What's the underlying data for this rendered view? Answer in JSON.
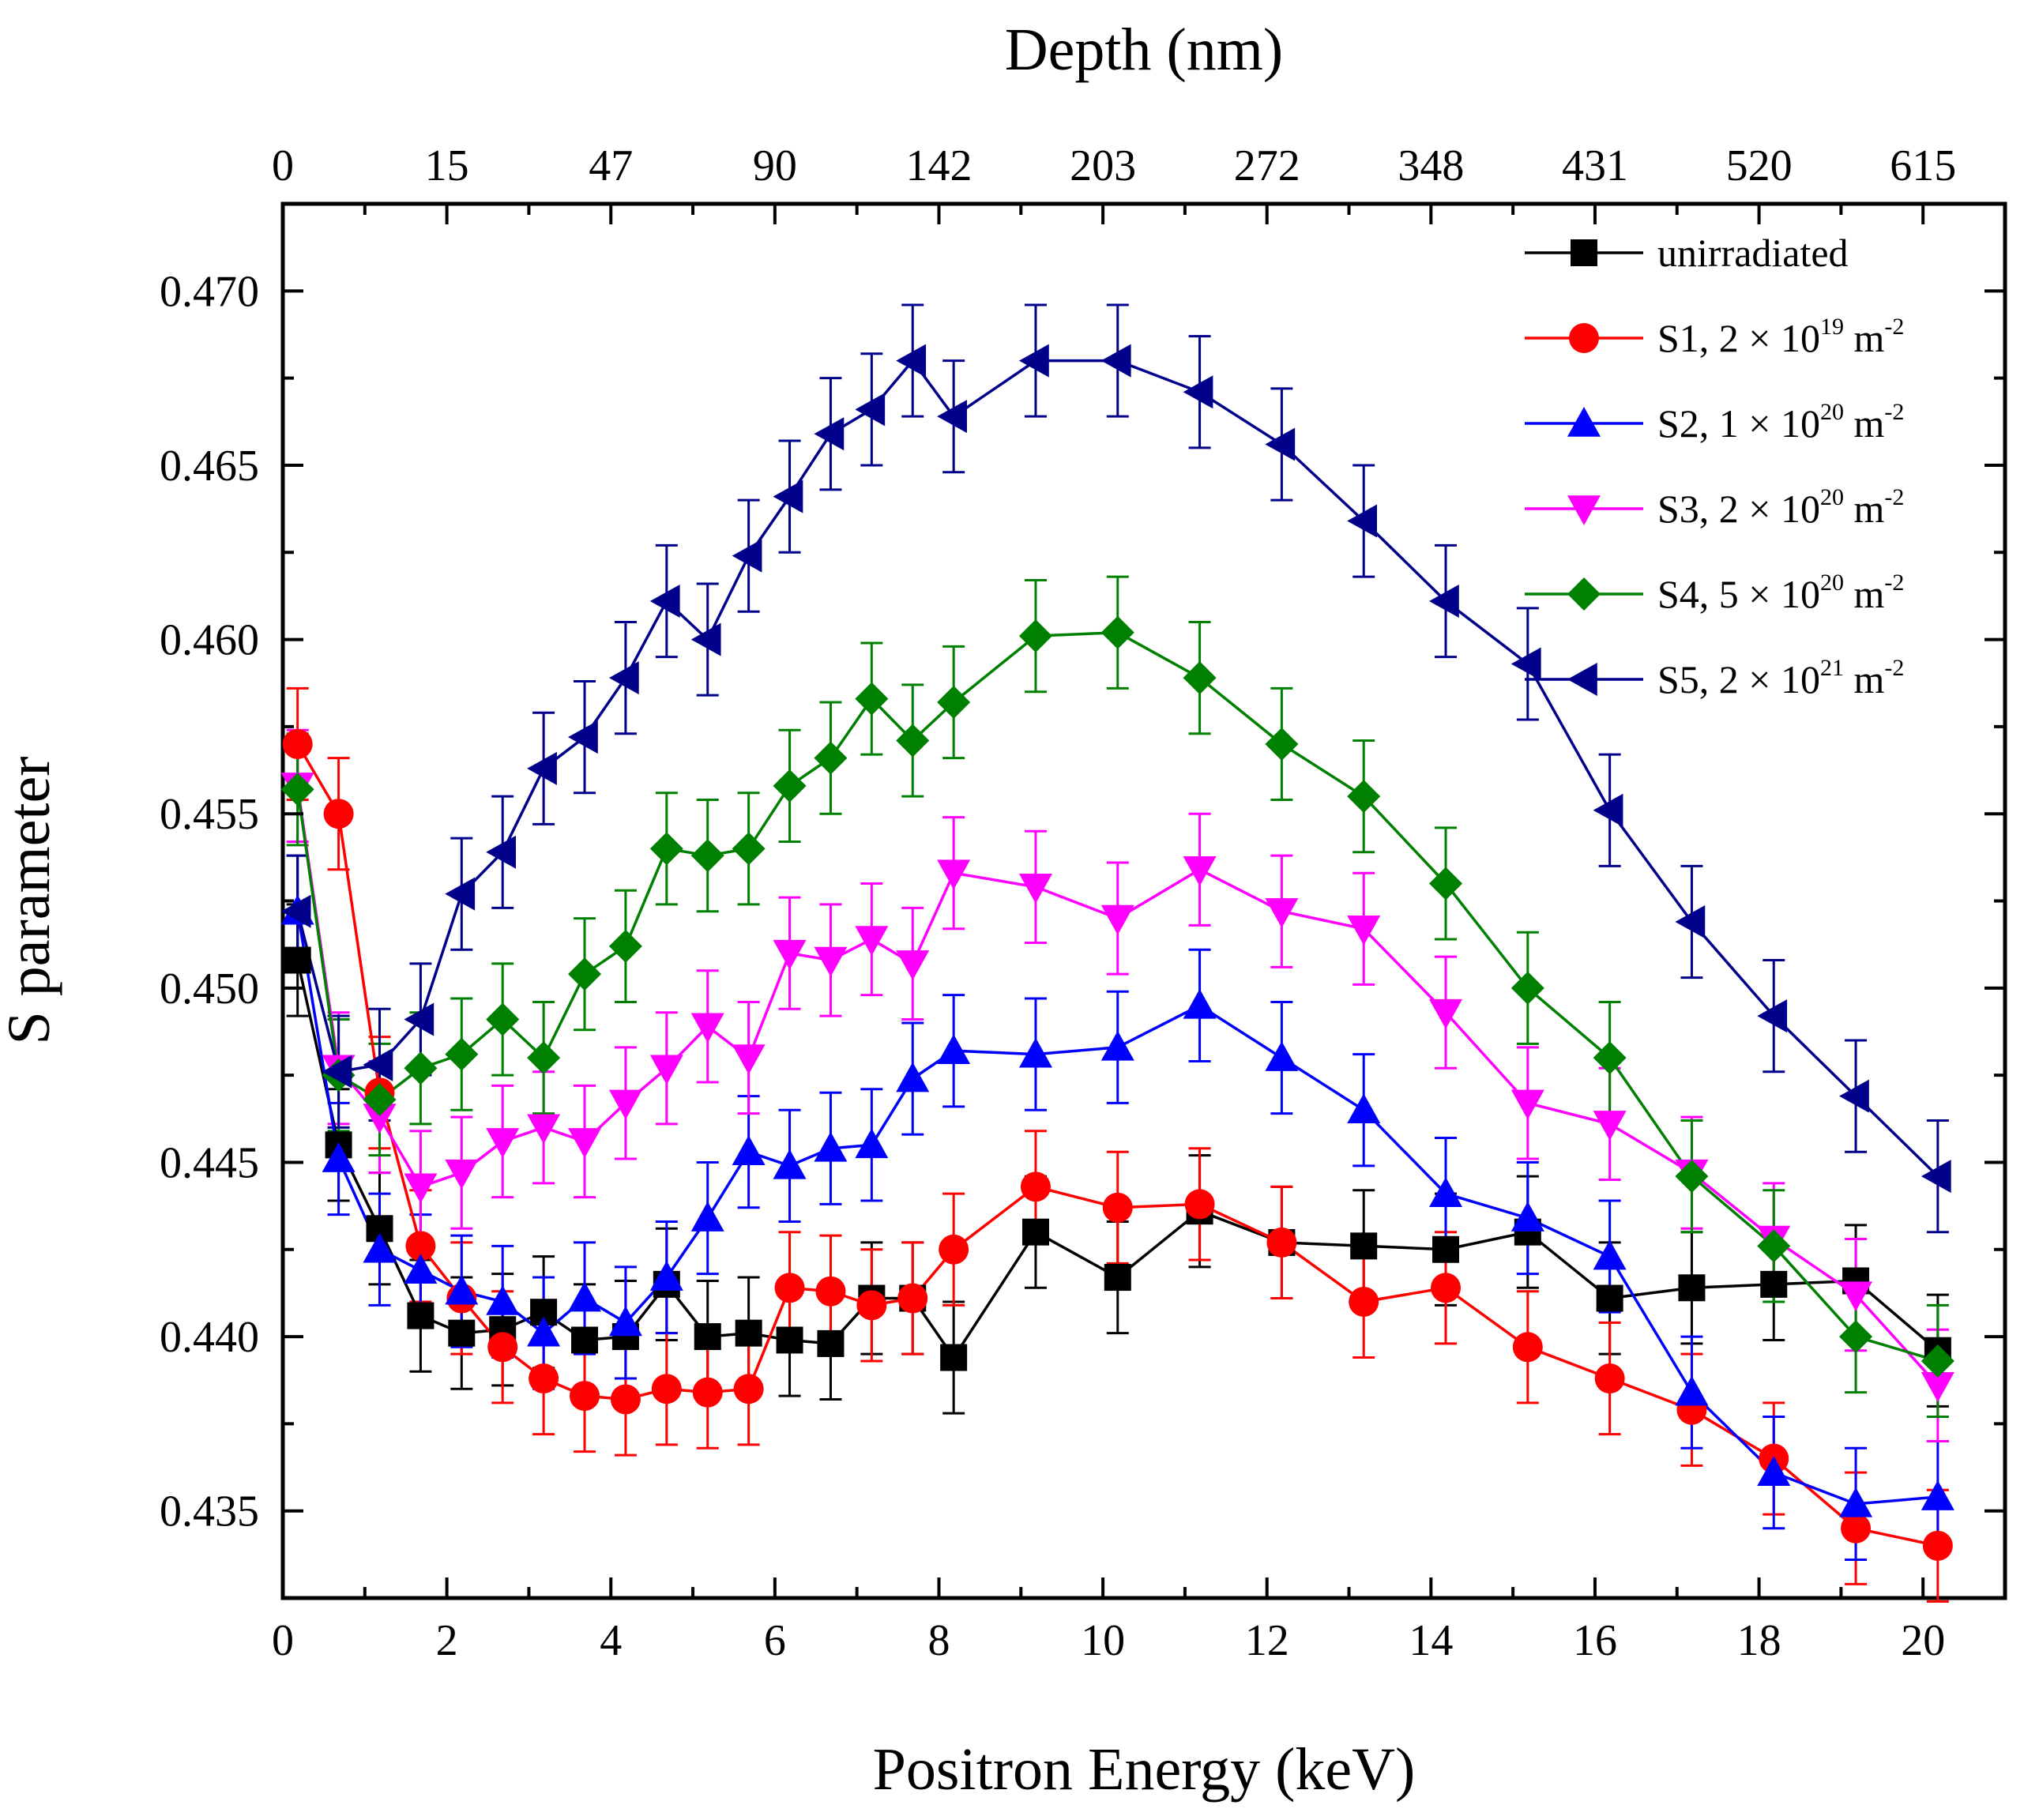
{
  "chart_data": {
    "type": "line",
    "xlabel": "Positron Energy (keV)",
    "ylabel": "S parameter",
    "top_xlabel": "Depth (nm)",
    "xlim": [
      0,
      21
    ],
    "ylim": [
      0.4325,
      0.4725
    ],
    "x_ticks": [
      0,
      2,
      4,
      6,
      8,
      10,
      12,
      14,
      16,
      18,
      20
    ],
    "x_tick_labels": [
      "0",
      "2",
      "4",
      "6",
      "8",
      "10",
      "12",
      "14",
      "16",
      "18",
      "20"
    ],
    "y_ticks": [
      0.435,
      0.44,
      0.445,
      0.45,
      0.455,
      0.46,
      0.465,
      0.47
    ],
    "y_tick_labels": [
      "0.435",
      "0.440",
      "0.445",
      "0.450",
      "0.455",
      "0.460",
      "0.465",
      "0.470"
    ],
    "top_ticks": [
      0,
      1,
      2,
      3,
      4,
      5,
      6,
      7,
      8,
      9,
      10
    ],
    "top_tick_labels": [
      "0",
      "15",
      "47",
      "90",
      "142",
      "203",
      "272",
      "348",
      "431",
      "520",
      "615"
    ],
    "top_minor_ticks": [
      0.5,
      1.5,
      2.5,
      3.5,
      4.5,
      5.5,
      6.5,
      7.5,
      8.5,
      9.5,
      10.5
    ],
    "legend_position": "top-right",
    "x": [
      0.18,
      0.68,
      1.18,
      1.68,
      2.18,
      2.68,
      3.18,
      3.68,
      4.18,
      4.68,
      5.18,
      5.68,
      6.18,
      6.68,
      7.18,
      7.68,
      8.18,
      9.18,
      10.18,
      11.18,
      12.18,
      13.18,
      14.18,
      15.18,
      16.18,
      17.18,
      18.18,
      19.18,
      20.18
    ],
    "series": [
      {
        "name": "unirradiated",
        "label_main": "unirradiated",
        "label_sup": "",
        "label_unit": "",
        "color": "#000000",
        "marker": "square",
        "values": [
          0.4508,
          0.4455,
          0.4431,
          0.4406,
          0.4401,
          0.4402,
          0.4407,
          0.4399,
          0.44,
          0.4415,
          0.44,
          0.4401,
          0.4399,
          0.4398,
          0.4411,
          0.4411,
          0.4394,
          0.443,
          0.4417,
          0.4436,
          0.4427,
          0.4426,
          0.4425,
          0.443,
          0.4411,
          0.4414,
          0.4415,
          0.4416,
          0.4396
        ],
        "error": 0.0016
      },
      {
        "name": "S1, 2 × 10^19 m^-2",
        "label_main": "S1, 2 × 10",
        "label_sup": "19",
        "label_unit": " m",
        "color": "#ff0000",
        "marker": "circle",
        "values": [
          0.457,
          0.455,
          0.447,
          0.4426,
          0.4411,
          0.4397,
          0.4388,
          0.4383,
          0.4382,
          0.4385,
          0.4384,
          0.4385,
          0.4414,
          0.4413,
          0.4409,
          0.4411,
          0.4425,
          0.4443,
          0.4437,
          0.4438,
          0.4427,
          0.441,
          0.4414,
          0.4397,
          0.4388,
          0.4379,
          0.4365,
          0.4345,
          0.434
        ],
        "error": 0.0016
      },
      {
        "name": "S2, 1 × 10^20 m^-2",
        "label_main": "S2, 1 × 10",
        "label_sup": "20",
        "label_unit": " m",
        "color": "#0000ff",
        "marker": "triangle-up",
        "values": [
          0.4522,
          0.4451,
          0.4425,
          0.4419,
          0.4413,
          0.441,
          0.4401,
          0.4411,
          0.4404,
          0.4417,
          0.4434,
          0.4453,
          0.4449,
          0.4454,
          0.4455,
          0.4474,
          0.4482,
          0.4481,
          0.4483,
          0.4495,
          0.448,
          0.4465,
          0.4441,
          0.4434,
          0.4423,
          0.4384,
          0.4361,
          0.4352,
          0.4354
        ],
        "error": 0.0016
      },
      {
        "name": "S3, 2 × 10^20 m^-2",
        "label_main": "S3, 2 × 10",
        "label_sup": "20",
        "label_unit": " m",
        "color": "#ff00ff",
        "marker": "triangle-down",
        "values": [
          0.4558,
          0.4477,
          0.4463,
          0.4443,
          0.4447,
          0.4456,
          0.446,
          0.4456,
          0.4467,
          0.4477,
          0.4489,
          0.448,
          0.451,
          0.4508,
          0.4514,
          0.4507,
          0.4533,
          0.4529,
          0.452,
          0.4534,
          0.4522,
          0.4517,
          0.4493,
          0.4467,
          0.4461,
          0.4447,
          0.4428,
          0.4412,
          0.4386
        ],
        "error": 0.0016
      },
      {
        "name": "S4, 5 × 10^20 m^-2",
        "label_main": "S4, 5 × 10",
        "label_sup": "20",
        "label_unit": " m",
        "color": "#008000",
        "marker": "diamond",
        "values": [
          0.4557,
          0.4475,
          0.4468,
          0.4477,
          0.4481,
          0.4491,
          0.448,
          0.4504,
          0.4512,
          0.454,
          0.4538,
          0.454,
          0.4558,
          0.4566,
          0.4583,
          0.4571,
          0.4582,
          0.4601,
          0.4602,
          0.4589,
          0.457,
          0.4555,
          0.453,
          0.45,
          0.448,
          0.4446,
          0.4426,
          0.44,
          0.4393
        ],
        "error": 0.0016
      },
      {
        "name": "S5, 2 × 10^21 m^-2",
        "label_main": "S5, 2 × 10",
        "label_sup": "21",
        "label_unit": " m",
        "color": "#00008b",
        "marker": "triangle-left",
        "values": [
          0.4522,
          0.4476,
          0.4478,
          0.4491,
          0.4527,
          0.4539,
          0.4563,
          0.4572,
          0.4589,
          0.4611,
          0.46,
          0.4624,
          0.4641,
          0.4659,
          0.4666,
          0.468,
          0.4664,
          0.468,
          0.468,
          0.4671,
          0.4656,
          0.4634,
          0.4611,
          0.4593,
          0.4551,
          0.4519,
          0.4492,
          0.4469,
          0.4446
        ],
        "error": 0.0016
      }
    ],
    "legend_unit_sup": "-2"
  }
}
